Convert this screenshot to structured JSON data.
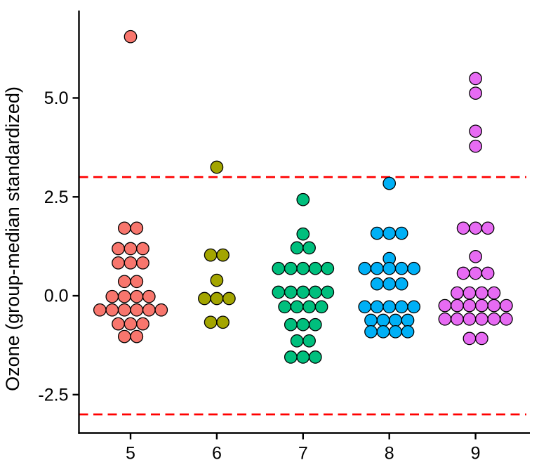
{
  "chart_data": {
    "type": "scatter",
    "subtype": "grouped-dot-strip-beeswarm",
    "title": "",
    "xlabel": "",
    "ylabel": "Ozone (group-median standardized)",
    "x_categories": [
      "5",
      "6",
      "7",
      "8",
      "9"
    ],
    "y_tick_labels": [
      "5.0",
      "2.5",
      "0.0",
      "-2.5"
    ],
    "y_tick_values": [
      5.0,
      2.5,
      0.0,
      -2.5
    ],
    "ylim": [
      -3.47,
      7.21
    ],
    "grid": "off",
    "legend": "none",
    "axis_color": "#000000",
    "point_outline_color": "#000000",
    "reference_lines": [
      {
        "value": 3.0,
        "color": "#FF0000",
        "style": "dashed"
      },
      {
        "value": -3.0,
        "color": "#FF0000",
        "style": "dashed"
      }
    ],
    "series": [
      {
        "group": "5",
        "color": "#F8766D",
        "n": 26,
        "rows_value_count": [
          [
            6.55,
            1
          ],
          [
            1.71,
            2
          ],
          [
            1.19,
            3
          ],
          [
            0.83,
            3
          ],
          [
            0.36,
            2
          ],
          [
            -0.02,
            4
          ],
          [
            -0.36,
            6
          ],
          [
            -0.71,
            3
          ],
          [
            -1.03,
            2
          ]
        ]
      },
      {
        "group": "6",
        "color": "#A3A500",
        "n": 9,
        "rows_value_count": [
          [
            3.25,
            1
          ],
          [
            1.03,
            2
          ],
          [
            0.39,
            1
          ],
          [
            -0.07,
            3
          ],
          [
            -0.67,
            2
          ]
        ]
      },
      {
        "group": "7",
        "color": "#00BF7D",
        "n": 26,
        "rows_value_count": [
          [
            2.43,
            1
          ],
          [
            1.56,
            1
          ],
          [
            1.21,
            2
          ],
          [
            0.69,
            5
          ],
          [
            0.09,
            5
          ],
          [
            -0.28,
            4
          ],
          [
            -0.73,
            3
          ],
          [
            -1.14,
            2
          ],
          [
            -1.55,
            3
          ]
        ]
      },
      {
        "group": "8",
        "color": "#00B0F6",
        "n": 26,
        "rows_value_count": [
          [
            2.84,
            1
          ],
          [
            1.58,
            3
          ],
          [
            0.94,
            1
          ],
          [
            0.69,
            5
          ],
          [
            0.3,
            3
          ],
          [
            -0.28,
            5
          ],
          [
            -0.62,
            4
          ],
          [
            -0.91,
            4
          ]
        ]
      },
      {
        "group": "9",
        "color": "#E76BF3",
        "n": 29,
        "rows_value_count": [
          [
            5.49,
            1
          ],
          [
            5.12,
            1
          ],
          [
            4.16,
            1
          ],
          [
            3.78,
            1
          ],
          [
            1.71,
            3
          ],
          [
            0.99,
            1
          ],
          [
            0.57,
            3
          ],
          [
            0.07,
            4
          ],
          [
            -0.25,
            6
          ],
          [
            -0.59,
            6
          ],
          [
            -1.08,
            2
          ]
        ]
      }
    ]
  }
}
